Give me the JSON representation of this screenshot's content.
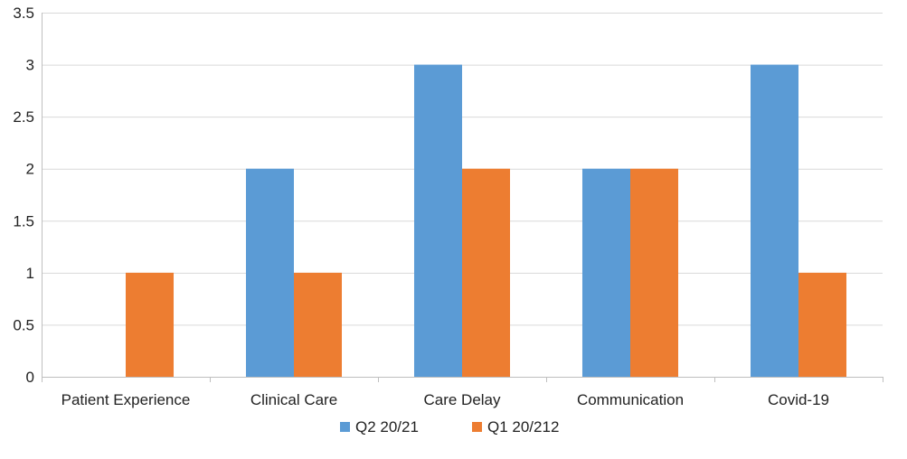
{
  "chart_data": {
    "type": "bar",
    "categories": [
      "Patient Experience",
      "Clinical Care",
      "Care Delay",
      "Communication",
      "Covid-19"
    ],
    "series": [
      {
        "name": "Q2 20/21",
        "values": [
          0,
          2,
          3,
          2,
          3
        ],
        "color": "#5B9BD5"
      },
      {
        "name": "Q1 20/212",
        "values": [
          1,
          1,
          2,
          2,
          1
        ],
        "color": "#ED7D31"
      }
    ],
    "yticks": [
      "0",
      "0.5",
      "1",
      "1.5",
      "2",
      "2.5",
      "3",
      "3.5"
    ],
    "ylim": [
      0,
      3.5
    ],
    "grid": true,
    "legend_position": "bottom",
    "title": "",
    "xlabel": "",
    "ylabel": ""
  }
}
